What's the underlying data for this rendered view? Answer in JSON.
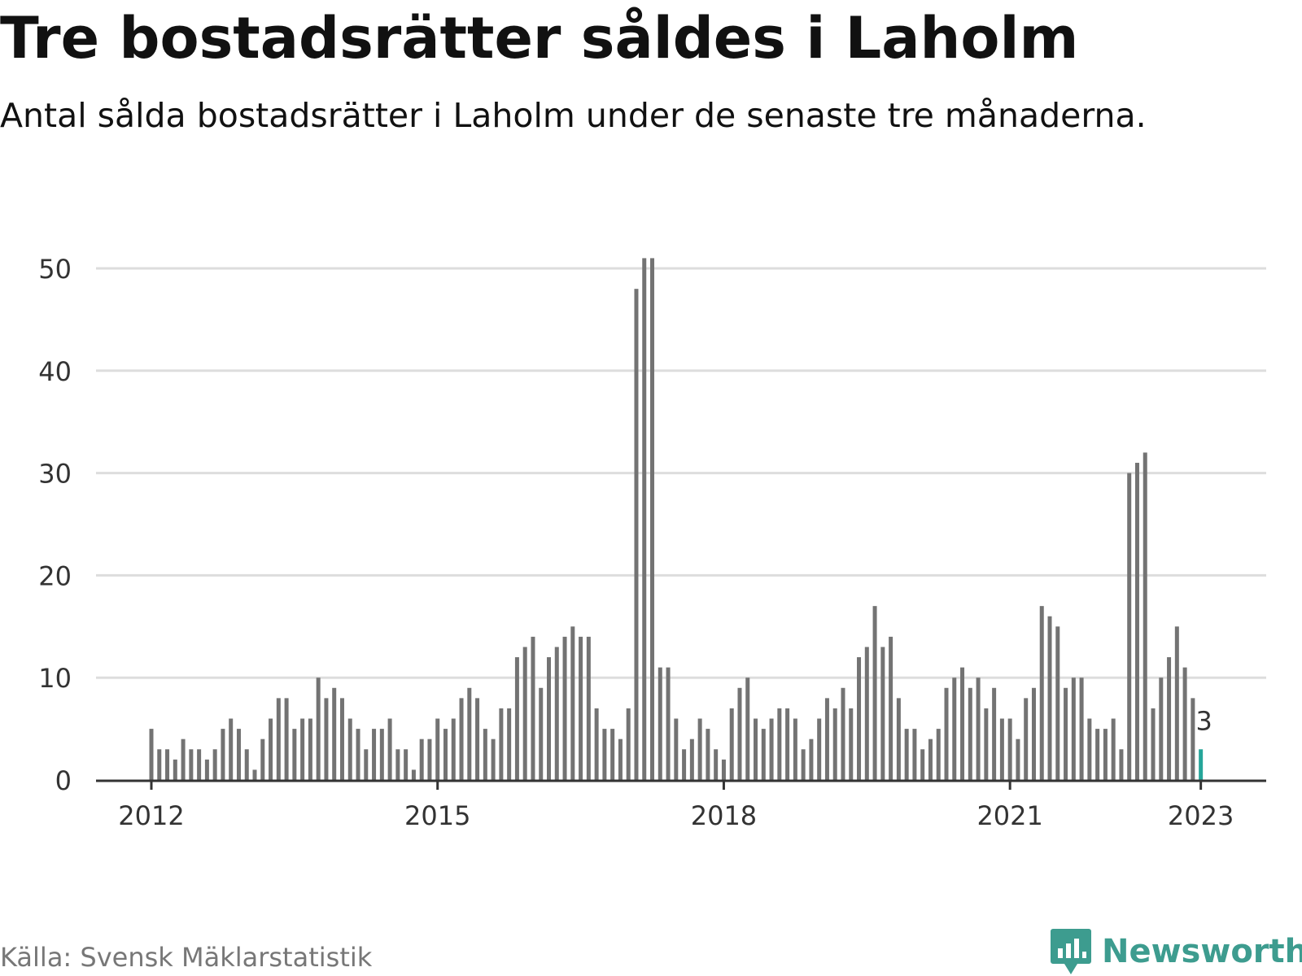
{
  "title": "Tre bostadsrätter såldes i Laholm",
  "subtitle": "Antal sålda bostadsrätter i Laholm under de senaste tre månaderna.",
  "source": "Källa: Svensk Mäklarstatistik",
  "brand": "Newsworthy",
  "colors": {
    "bar": "#737373",
    "highlight": "#26a69a",
    "grid": "#dddddd",
    "axis": "#333333",
    "brand": "#3d9c8f"
  },
  "chart_data": {
    "type": "bar",
    "title": "Tre bostadsrätter såldes i Laholm",
    "subtitle": "Antal sålda bostadsrätter i Laholm under de senaste tre månaderna.",
    "xlabel": "",
    "ylabel": "",
    "ylim": [
      0,
      50
    ],
    "yticks": [
      0,
      10,
      20,
      30,
      40,
      50
    ],
    "xticks": [
      "2012",
      "2015",
      "2018",
      "2021",
      "2023"
    ],
    "grid": true,
    "start": "2012-01",
    "frequency": "monthly",
    "values": [
      5,
      3,
      3,
      2,
      4,
      3,
      3,
      2,
      3,
      5,
      6,
      5,
      3,
      1,
      4,
      6,
      8,
      8,
      5,
      6,
      6,
      10,
      8,
      9,
      8,
      6,
      5,
      3,
      5,
      5,
      6,
      3,
      3,
      1,
      4,
      4,
      6,
      5,
      6,
      8,
      9,
      8,
      5,
      4,
      7,
      7,
      12,
      13,
      14,
      9,
      12,
      13,
      14,
      15,
      14,
      14,
      7,
      5,
      5,
      4,
      7,
      48,
      51,
      51,
      11,
      11,
      6,
      3,
      4,
      6,
      5,
      3,
      2,
      7,
      9,
      10,
      6,
      5,
      6,
      7,
      7,
      6,
      3,
      4,
      6,
      8,
      7,
      9,
      7,
      12,
      13,
      17,
      13,
      14,
      8,
      5,
      5,
      3,
      4,
      5,
      9,
      10,
      11,
      9,
      10,
      7,
      9,
      6,
      6,
      4,
      8,
      9,
      17,
      16,
      15,
      9,
      10,
      10,
      6,
      5,
      5,
      6,
      3,
      30,
      31,
      32,
      7,
      10,
      12,
      15,
      11,
      8,
      3
    ],
    "highlight_label": "3"
  }
}
